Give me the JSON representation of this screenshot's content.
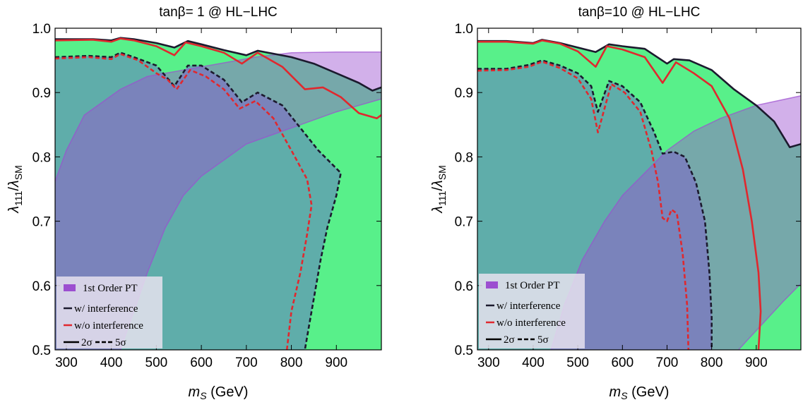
{
  "colors": {
    "green": "#58f08a",
    "teal": "#5fadaa",
    "purple": "#9c4fd0",
    "purple_fill": "#c58de0",
    "overlap": "#6f6aa6",
    "black_line": "#1c1a2e",
    "red_line": "#e0282e"
  },
  "legend": {
    "pt": "1st Order PT",
    "with": "w/   interference",
    "without": "w/o interference",
    "sig2": "2σ",
    "sig5": "5σ"
  },
  "chart_data": [
    {
      "type": "area",
      "title": "tanβ= 1 @ HL−LHC",
      "xlabel": "m_S (GeV)",
      "ylabel": "λ111/λSM",
      "xlim": [
        275,
        1000
      ],
      "ylim": [
        0.5,
        1.0
      ],
      "xticks": [
        300,
        400,
        500,
        600,
        700,
        800,
        900
      ],
      "yticks": [
        0.5,
        0.6,
        0.7,
        0.8,
        0.9,
        1.0
      ],
      "legend_position": "bottom-left",
      "series": [
        {
          "name": "w/ interference, 2σ",
          "style": "solid-black",
          "points": [
            [
              275,
              0.983
            ],
            [
              360,
              0.983
            ],
            [
              400,
              0.981
            ],
            [
              420,
              0.985
            ],
            [
              450,
              0.983
            ],
            [
              500,
              0.977
            ],
            [
              540,
              0.97
            ],
            [
              570,
              0.98
            ],
            [
              600,
              0.975
            ],
            [
              650,
              0.966
            ],
            [
              700,
              0.958
            ],
            [
              725,
              0.965
            ],
            [
              800,
              0.955
            ],
            [
              850,
              0.945
            ],
            [
              900,
              0.93
            ],
            [
              950,
              0.915
            ],
            [
              980,
              0.903
            ],
            [
              1000,
              0.908
            ]
          ]
        },
        {
          "name": "w/o interference, 2σ",
          "style": "solid-red",
          "points": [
            [
              275,
              0.981
            ],
            [
              360,
              0.982
            ],
            [
              400,
              0.979
            ],
            [
              420,
              0.984
            ],
            [
              450,
              0.981
            ],
            [
              500,
              0.972
            ],
            [
              540,
              0.958
            ],
            [
              565,
              0.978
            ],
            [
              600,
              0.972
            ],
            [
              650,
              0.962
            ],
            [
              690,
              0.945
            ],
            [
              725,
              0.962
            ],
            [
              780,
              0.94
            ],
            [
              830,
              0.905
            ],
            [
              870,
              0.908
            ],
            [
              910,
              0.893
            ],
            [
              950,
              0.868
            ],
            [
              990,
              0.86
            ],
            [
              1000,
              0.865
            ]
          ]
        },
        {
          "name": "w/ interference, 5σ",
          "style": "dashed-black",
          "points": [
            [
              275,
              0.955
            ],
            [
              350,
              0.957
            ],
            [
              400,
              0.955
            ],
            [
              420,
              0.962
            ],
            [
              450,
              0.955
            ],
            [
              500,
              0.942
            ],
            [
              540,
              0.91
            ],
            [
              570,
              0.942
            ],
            [
              600,
              0.942
            ],
            [
              650,
              0.92
            ],
            [
              690,
              0.885
            ],
            [
              725,
              0.9
            ],
            [
              780,
              0.88
            ],
            [
              820,
              0.845
            ],
            [
              860,
              0.81
            ],
            [
              910,
              0.775
            ],
            [
              900,
              0.74
            ],
            [
              880,
              0.69
            ],
            [
              865,
              0.64
            ],
            [
              850,
              0.58
            ],
            [
              840,
              0.54
            ],
            [
              830,
              0.5
            ]
          ]
        },
        {
          "name": "w/o interference, 5σ",
          "style": "dashed-red",
          "points": [
            [
              275,
              0.953
            ],
            [
              350,
              0.955
            ],
            [
              400,
              0.952
            ],
            [
              420,
              0.96
            ],
            [
              460,
              0.95
            ],
            [
              500,
              0.93
            ],
            [
              525,
              0.92
            ],
            [
              545,
              0.905
            ],
            [
              575,
              0.935
            ],
            [
              610,
              0.925
            ],
            [
              650,
              0.905
            ],
            [
              685,
              0.875
            ],
            [
              700,
              0.88
            ],
            [
              720,
              0.887
            ],
            [
              760,
              0.86
            ],
            [
              800,
              0.81
            ],
            [
              835,
              0.765
            ],
            [
              845,
              0.725
            ],
            [
              835,
              0.68
            ],
            [
              820,
              0.62
            ],
            [
              800,
              0.56
            ],
            [
              790,
              0.5
            ]
          ]
        },
        {
          "name": "1st Order PT",
          "style": "purple-band",
          "upper": [
            [
              275,
              0.762
            ],
            [
              300,
              0.81
            ],
            [
              340,
              0.865
            ],
            [
              380,
              0.885
            ],
            [
              420,
              0.905
            ],
            [
              480,
              0.925
            ],
            [
              560,
              0.935
            ],
            [
              640,
              0.945
            ],
            [
              720,
              0.955
            ],
            [
              800,
              0.962
            ],
            [
              900,
              0.963
            ],
            [
              1000,
              0.963
            ]
          ],
          "lower": [
            [
              1000,
              0.89
            ],
            [
              900,
              0.87
            ],
            [
              800,
              0.845
            ],
            [
              700,
              0.82
            ],
            [
              600,
              0.77
            ],
            [
              560,
              0.74
            ],
            [
              520,
              0.69
            ],
            [
              480,
              0.62
            ],
            [
              450,
              0.56
            ],
            [
              420,
              0.5
            ]
          ]
        }
      ]
    },
    {
      "type": "area",
      "title": "tanβ=10 @ HL−LHC",
      "xlabel": "m_S (GeV)",
      "ylabel": "λ111/λSM",
      "xlim": [
        275,
        1000
      ],
      "ylim": [
        0.5,
        1.0
      ],
      "xticks": [
        300,
        400,
        500,
        600,
        700,
        800,
        900
      ],
      "yticks": [
        0.5,
        0.6,
        0.7,
        0.8,
        0.9,
        1.0
      ],
      "legend_position": "bottom-left",
      "series": [
        {
          "name": "w/ interference, 2σ",
          "style": "solid-black",
          "points": [
            [
              275,
              0.98
            ],
            [
              340,
              0.98
            ],
            [
              400,
              0.977
            ],
            [
              420,
              0.982
            ],
            [
              460,
              0.977
            ],
            [
              500,
              0.97
            ],
            [
              540,
              0.963
            ],
            [
              570,
              0.975
            ],
            [
              600,
              0.972
            ],
            [
              650,
              0.968
            ],
            [
              700,
              0.945
            ],
            [
              715,
              0.952
            ],
            [
              750,
              0.95
            ],
            [
              800,
              0.935
            ],
            [
              850,
              0.905
            ],
            [
              900,
              0.88
            ],
            [
              940,
              0.855
            ],
            [
              975,
              0.815
            ],
            [
              1000,
              0.82
            ]
          ]
        },
        {
          "name": "w/o interference, 2σ",
          "style": "solid-red",
          "points": [
            [
              275,
              0.979
            ],
            [
              340,
              0.979
            ],
            [
              400,
              0.976
            ],
            [
              420,
              0.981
            ],
            [
              460,
              0.976
            ],
            [
              500,
              0.964
            ],
            [
              540,
              0.94
            ],
            [
              565,
              0.972
            ],
            [
              600,
              0.967
            ],
            [
              650,
              0.955
            ],
            [
              690,
              0.915
            ],
            [
              720,
              0.947
            ],
            [
              760,
              0.93
            ],
            [
              800,
              0.91
            ],
            [
              840,
              0.86
            ],
            [
              870,
              0.78
            ],
            [
              890,
              0.7
            ],
            [
              905,
              0.62
            ],
            [
              910,
              0.56
            ],
            [
              905,
              0.5
            ]
          ]
        },
        {
          "name": "w/ interference, 5σ",
          "style": "dashed-black",
          "points": [
            [
              275,
              0.937
            ],
            [
              340,
              0.937
            ],
            [
              390,
              0.943
            ],
            [
              420,
              0.95
            ],
            [
              460,
              0.942
            ],
            [
              500,
              0.93
            ],
            [
              530,
              0.91
            ],
            [
              545,
              0.87
            ],
            [
              570,
              0.918
            ],
            [
              600,
              0.91
            ],
            [
              640,
              0.885
            ],
            [
              670,
              0.84
            ],
            [
              690,
              0.805
            ],
            [
              715,
              0.808
            ],
            [
              740,
              0.8
            ],
            [
              765,
              0.76
            ],
            [
              785,
              0.7
            ],
            [
              795,
              0.62
            ],
            [
              800,
              0.55
            ],
            [
              800,
              0.5
            ]
          ]
        },
        {
          "name": "w/o interference, 5σ",
          "style": "dashed-red",
          "points": [
            [
              275,
              0.934
            ],
            [
              340,
              0.935
            ],
            [
              390,
              0.94
            ],
            [
              420,
              0.948
            ],
            [
              460,
              0.938
            ],
            [
              500,
              0.922
            ],
            [
              530,
              0.89
            ],
            [
              545,
              0.838
            ],
            [
              575,
              0.913
            ],
            [
              605,
              0.9
            ],
            [
              640,
              0.87
            ],
            [
              665,
              0.81
            ],
            [
              680,
              0.76
            ],
            [
              690,
              0.705
            ],
            [
              700,
              0.7
            ],
            [
              710,
              0.718
            ],
            [
              722,
              0.712
            ],
            [
              735,
              0.65
            ],
            [
              745,
              0.57
            ],
            [
              748,
              0.5
            ]
          ]
        },
        {
          "name": "1st Order PT",
          "style": "purple-band",
          "upper": [
            [
              440,
              0.5
            ],
            [
              470,
              0.57
            ],
            [
              510,
              0.64
            ],
            [
              560,
              0.7
            ],
            [
              600,
              0.74
            ],
            [
              650,
              0.775
            ],
            [
              700,
              0.81
            ],
            [
              760,
              0.84
            ],
            [
              820,
              0.86
            ],
            [
              900,
              0.88
            ],
            [
              1000,
              0.895
            ]
          ],
          "lower": [
            [
              1000,
              0.603
            ],
            [
              960,
              0.575
            ],
            [
              920,
              0.545
            ],
            [
              880,
              0.515
            ],
            [
              860,
              0.5
            ]
          ]
        }
      ]
    }
  ]
}
